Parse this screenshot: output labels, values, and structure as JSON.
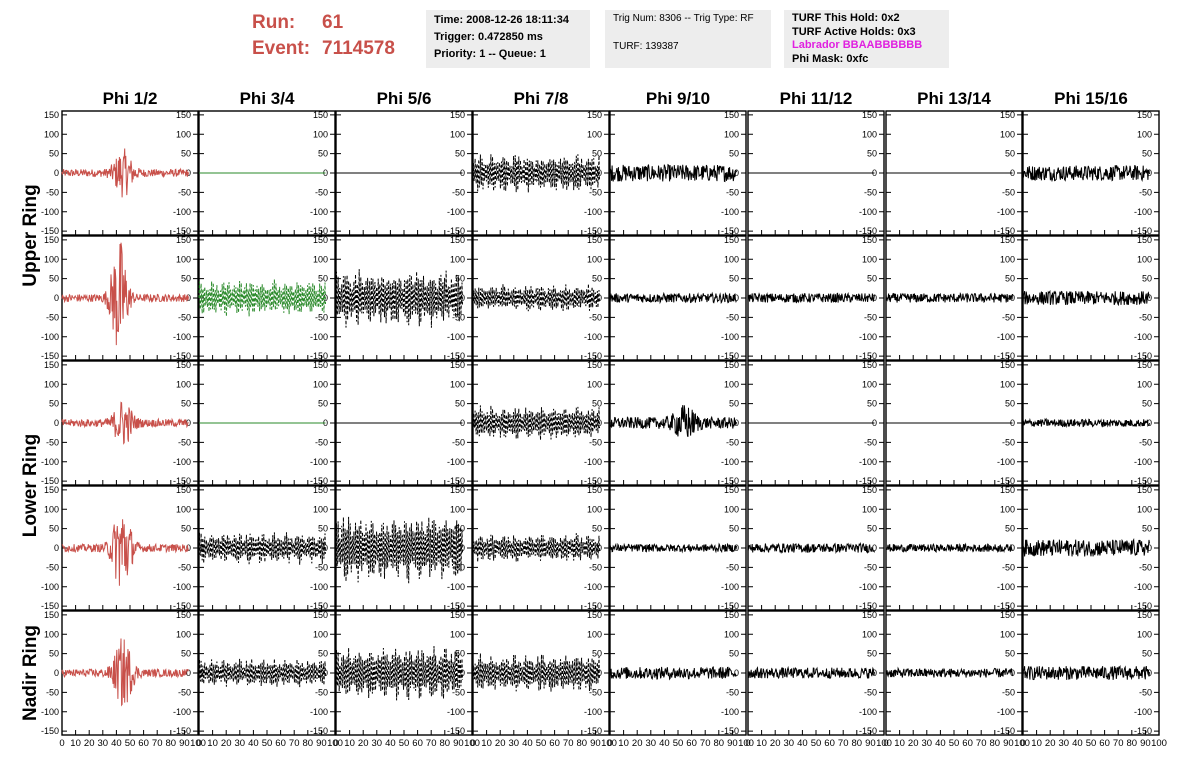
{
  "run": {
    "run_label": "Run:",
    "run_value": "61",
    "event_label": "Event:",
    "event_value": "7114578"
  },
  "info_time": {
    "time": "Time: 2008-12-26 18:11:34",
    "trigger": "Trigger: 0.472850 ms",
    "priority": "Priority: 1 -- Queue: 1"
  },
  "info_trig": {
    "trig": "Trig Num: 8306 -- Trig Type: RF",
    "turf": "TURF: 139387"
  },
  "info_turf": {
    "this_hold": "TURF This Hold: 0x2",
    "active_holds": "TURF Active Holds: 0x3",
    "labrador": "Labrador BBAABBBBBB",
    "phi_mask": "Phi Mask: 0xfc"
  },
  "colors": {
    "run_text": "#c8504a",
    "labrador_text": "#e020e0",
    "info_bg": "#ededed",
    "red_trace": "#c8504a",
    "green_trace": "#2a8a2a",
    "black_trace": "#000000"
  },
  "chart_data": {
    "type": "line",
    "column_labels": [
      "Phi 1/2",
      "Phi 3/4",
      "Phi 5/6",
      "Phi 7/8",
      "Phi 9/10",
      "Phi 11/12",
      "Phi 13/14",
      "Phi 15/16"
    ],
    "ring_labels": [
      "Upper Ring",
      "Lower Ring",
      "Nadir Ring"
    ],
    "xlim": [
      0,
      100
    ],
    "ylim": [
      -160,
      160
    ],
    "x_ticks": [
      0,
      10,
      20,
      30,
      40,
      50,
      60,
      70,
      80,
      90,
      100
    ],
    "y_ticks": [
      -150,
      -100,
      -50,
      0,
      50,
      100,
      150
    ],
    "trace_x_range": [
      0,
      93
    ],
    "panels": [
      [
        {
          "color": "red",
          "style": "solid",
          "amp": 10,
          "burst": {
            "center": 45,
            "width": 7,
            "amp": 55
          }
        },
        {
          "color": "green",
          "style": "solid",
          "amp": 0
        },
        {
          "color": "black",
          "style": "solid",
          "amp": 0
        },
        {
          "color": "black",
          "style": "dashed",
          "amp": 55,
          "osc": true
        },
        {
          "color": "black",
          "style": "solid",
          "amp": 22
        },
        {
          "color": "black",
          "style": "solid",
          "amp": 0
        },
        {
          "color": "black",
          "style": "solid",
          "amp": 0
        },
        {
          "color": "black",
          "style": "solid",
          "amp": 20
        }
      ],
      [
        {
          "color": "red",
          "style": "solid",
          "amp": 10,
          "burst": {
            "center": 42,
            "width": 6,
            "amp": 150
          }
        },
        {
          "color": "green",
          "style": "dashed",
          "amp": 50,
          "osc": true
        },
        {
          "color": "black",
          "style": "dashed",
          "amp": 80,
          "osc": true
        },
        {
          "color": "black",
          "style": "dashed",
          "amp": 38,
          "osc": true
        },
        {
          "color": "black",
          "style": "solid",
          "amp": 12
        },
        {
          "color": "black",
          "style": "solid",
          "amp": 12
        },
        {
          "color": "black",
          "style": "solid",
          "amp": 12
        },
        {
          "color": "black",
          "style": "solid",
          "amp": 18
        }
      ],
      [
        {
          "color": "red",
          "style": "solid",
          "amp": 10,
          "burst": {
            "center": 45,
            "width": 7,
            "amp": 55
          }
        },
        {
          "color": "green",
          "style": "solid",
          "amp": 0
        },
        {
          "color": "black",
          "style": "solid",
          "amp": 0
        },
        {
          "color": "black",
          "style": "dashed",
          "amp": 48,
          "osc": true
        },
        {
          "color": "black",
          "style": "solid",
          "amp": 15,
          "burst": {
            "center": 55,
            "width": 8,
            "amp": 35
          }
        },
        {
          "color": "black",
          "style": "solid",
          "amp": 0
        },
        {
          "color": "black",
          "style": "solid",
          "amp": 0
        },
        {
          "color": "black",
          "style": "solid",
          "amp": 10
        }
      ],
      [
        {
          "color": "red",
          "style": "solid",
          "amp": 10,
          "burst": {
            "center": 44,
            "width": 7,
            "amp": 110
          }
        },
        {
          "color": "black",
          "style": "dashed",
          "amp": 45,
          "osc": true
        },
        {
          "color": "black",
          "style": "dashed",
          "amp": 95,
          "osc": true
        },
        {
          "color": "black",
          "style": "dashed",
          "amp": 40,
          "osc": true
        },
        {
          "color": "black",
          "style": "solid",
          "amp": 10
        },
        {
          "color": "black",
          "style": "solid",
          "amp": 12
        },
        {
          "color": "black",
          "style": "solid",
          "amp": 10
        },
        {
          "color": "black",
          "style": "solid",
          "amp": 22
        }
      ],
      [
        {
          "color": "red",
          "style": "solid",
          "amp": 10,
          "burst": {
            "center": 45,
            "width": 7,
            "amp": 85
          }
        },
        {
          "color": "black",
          "style": "dashed",
          "amp": 40,
          "osc": true
        },
        {
          "color": "black",
          "style": "dashed",
          "amp": 75,
          "osc": true
        },
        {
          "color": "black",
          "style": "dashed",
          "amp": 55,
          "osc": true
        },
        {
          "color": "black",
          "style": "solid",
          "amp": 16
        },
        {
          "color": "black",
          "style": "solid",
          "amp": 14
        },
        {
          "color": "black",
          "style": "solid",
          "amp": 12
        },
        {
          "color": "black",
          "style": "solid",
          "amp": 18
        }
      ]
    ]
  }
}
